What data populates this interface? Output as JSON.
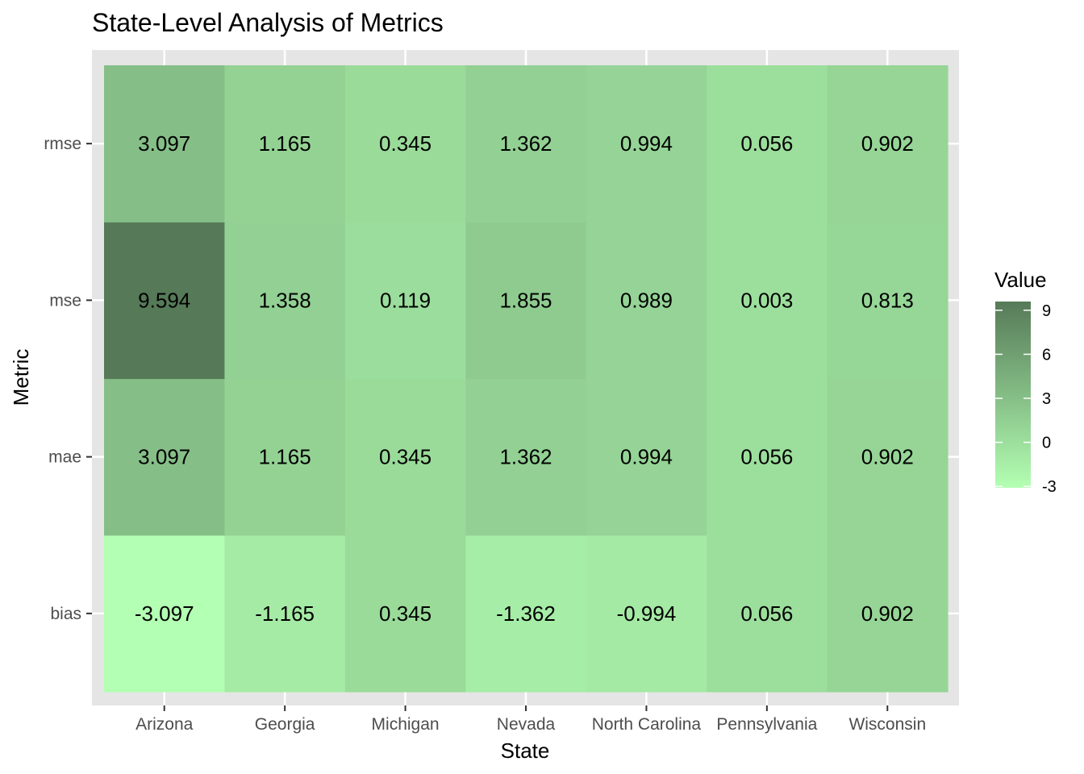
{
  "chart_data": {
    "type": "heatmap",
    "title": "State-Level Analysis of Metrics",
    "xlabel": "State",
    "ylabel": "Metric",
    "x_categories": [
      "Arizona",
      "Georgia",
      "Michigan",
      "Nevada",
      "North Carolina",
      "Pennsylvania",
      "Wisconsin"
    ],
    "y_categories": [
      "bias",
      "mae",
      "mse",
      "rmse"
    ],
    "values": {
      "rmse": [
        3.097,
        1.165,
        0.345,
        1.362,
        0.994,
        0.056,
        0.902
      ],
      "mse": [
        9.594,
        1.358,
        0.119,
        1.855,
        0.989,
        0.003,
        0.813
      ],
      "mae": [
        3.097,
        1.165,
        0.345,
        1.362,
        0.994,
        0.056,
        0.902
      ],
      "bias": [
        -3.097,
        -1.165,
        0.345,
        -1.362,
        -0.994,
        0.056,
        0.902
      ]
    },
    "cell_labels": {
      "rmse": [
        "3.097",
        "1.165",
        "0.345",
        "1.362",
        "0.994",
        "0.056",
        "0.902"
      ],
      "mse": [
        "9.594",
        "1.358",
        "0.119",
        "1.855",
        "0.989",
        "0.003",
        "0.813"
      ],
      "mae": [
        "3.097",
        "1.165",
        "0.345",
        "1.362",
        "0.994",
        "0.056",
        "0.902"
      ],
      "bias": [
        "-3.097",
        "-1.165",
        "0.345",
        "-1.362",
        "-0.994",
        "0.056",
        "0.902"
      ]
    },
    "legend": {
      "title": "Value",
      "ticks": [
        9,
        6,
        3,
        0,
        -3
      ],
      "tick_labels": [
        "9",
        "6",
        "3",
        "0",
        "-3"
      ],
      "range": [
        -3.097,
        9.594
      ],
      "placement": "right"
    },
    "colors": {
      "low": "#b3ffb3",
      "high": "#567a58",
      "panel_background": "#e5e5e5",
      "grid": "#ffffff"
    },
    "grid": true
  }
}
